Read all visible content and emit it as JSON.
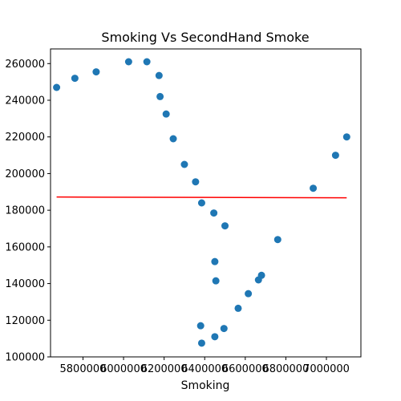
{
  "chart_data": {
    "type": "scatter",
    "title": "Smoking Vs SecondHand Smoke",
    "xlabel": "Smoking",
    "ylabel": "",
    "xlim": [
      5640000,
      7170000
    ],
    "ylim": [
      100000,
      268000
    ],
    "x_ticks": [
      5800000,
      6000000,
      6200000,
      6400000,
      6600000,
      6800000,
      7000000
    ],
    "x_tick_labels": [
      "5800000",
      "6000000",
      "6200000",
      "6400000",
      "6600000",
      "6800000",
      "7000000"
    ],
    "y_ticks": [
      100000,
      120000,
      140000,
      160000,
      180000,
      200000,
      220000,
      240000,
      260000
    ],
    "y_tick_labels": [
      "100000",
      "120000",
      "140000",
      "160000",
      "180000",
      "200000",
      "220000",
      "240000",
      "260000"
    ],
    "grid": false,
    "colors": {
      "points": "#1f77b4",
      "trend": "#ff0000"
    },
    "points": [
      {
        "x": 5670000,
        "y": 247000
      },
      {
        "x": 5760000,
        "y": 252000
      },
      {
        "x": 5865000,
        "y": 255500
      },
      {
        "x": 6025000,
        "y": 261000
      },
      {
        "x": 6115000,
        "y": 261000
      },
      {
        "x": 6175000,
        "y": 253500
      },
      {
        "x": 6180000,
        "y": 242000
      },
      {
        "x": 6210000,
        "y": 232500
      },
      {
        "x": 6245000,
        "y": 219000
      },
      {
        "x": 6300000,
        "y": 205000
      },
      {
        "x": 6355000,
        "y": 195500
      },
      {
        "x": 6385000,
        "y": 184000
      },
      {
        "x": 6445000,
        "y": 178500
      },
      {
        "x": 6500000,
        "y": 171500
      },
      {
        "x": 6450000,
        "y": 152000
      },
      {
        "x": 6455000,
        "y": 141500
      },
      {
        "x": 6680000,
        "y": 144500
      },
      {
        "x": 6665000,
        "y": 142000
      },
      {
        "x": 6615000,
        "y": 134500
      },
      {
        "x": 6565000,
        "y": 126500
      },
      {
        "x": 6760000,
        "y": 164000
      },
      {
        "x": 6935000,
        "y": 192000
      },
      {
        "x": 7045000,
        "y": 210000
      },
      {
        "x": 7100000,
        "y": 220000
      },
      {
        "x": 6380000,
        "y": 117000
      },
      {
        "x": 6495000,
        "y": 115500
      },
      {
        "x": 6450000,
        "y": 111000
      },
      {
        "x": 6385000,
        "y": 107500
      }
    ],
    "trend_line": [
      {
        "x": 5670000,
        "y": 187200
      },
      {
        "x": 7100000,
        "y": 186800
      }
    ]
  }
}
